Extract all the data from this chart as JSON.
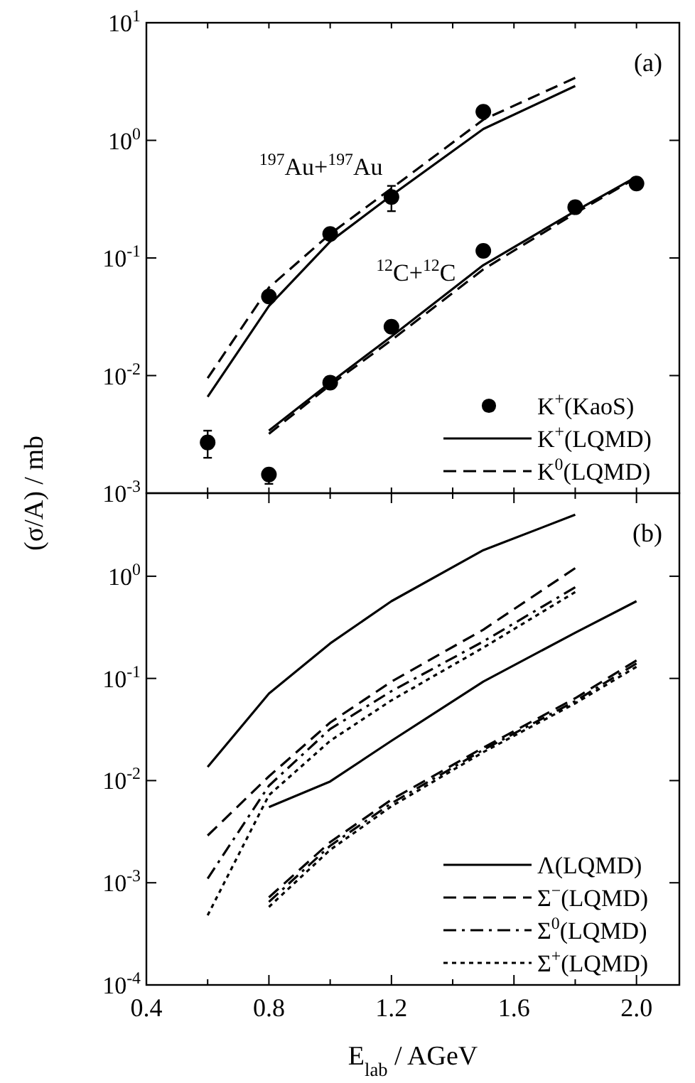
{
  "chart_data": [
    {
      "type": "line",
      "ylabel": "(σ/A) / mb",
      "xlim": [
        0.4,
        2.14
      ],
      "ylim": [
        0.001,
        10
      ],
      "log": true,
      "grid": false,
      "legend": "bottom right",
      "tick_labels": "y",
      "xticks": [
        {
          "value": 0.4,
          "label": null
        },
        {
          "value": 0.6,
          "label": null
        },
        {
          "value": 0.8,
          "label": null
        },
        {
          "value": 1.0,
          "label": null
        },
        {
          "value": 1.2,
          "label": null
        },
        {
          "value": 1.4,
          "label": null
        },
        {
          "value": 1.6,
          "label": null
        },
        {
          "value": 1.8,
          "label": null
        },
        {
          "value": 2.0,
          "label": null
        }
      ],
      "yticks": [
        {
          "value": 0.001,
          "label": "10$^{-3}$"
        },
        {
          "value": 0.01,
          "label": "10$^{-2}$"
        },
        {
          "value": 0.1,
          "label": "10$^{-1}$"
        },
        {
          "value": 1,
          "label": "10$^{0}$"
        },
        {
          "value": 10,
          "label": "10$^{1}$"
        }
      ],
      "annotations": [
        "(a)",
        "$^{197}$Au+$^{197}$Au",
        "$^{12}$C+$^{12}$C"
      ],
      "series": [
        {
          "name": "K$^{+}$(KaoS)",
          "type": "scatter",
          "marker": "circle",
          "color": "#000000",
          "x": [
            0.6,
            0.8,
            0.8,
            1.0,
            1.0,
            1.2,
            1.2,
            1.5,
            1.5,
            1.8,
            2.0
          ],
          "values": [
            0.0027,
            0.00144,
            0.047,
            0.16,
            0.0087,
            0.33,
            0.026,
            1.75,
            0.115,
            0.27,
            0.43
          ],
          "errors": [
            [
              0.002,
              0.0034
            ],
            [
              0.0012,
              0.00144
            ],
            null,
            null,
            null,
            [
              0.25,
              0.41
            ],
            null,
            null,
            null,
            null,
            null
          ]
        },
        {
          "name": "K$^{+}$(LQMD)",
          "line_style": "solid",
          "color": "#000000",
          "x": [
            0.6,
            0.8,
            1.0,
            1.2,
            1.5,
            1.8
          ],
          "values": [
            0.0066,
            0.039,
            0.138,
            0.34,
            1.25,
            2.9
          ]
        },
        {
          "name": "K$^{0}$(LQMD)",
          "line_style": "dashed",
          "color": "#000000",
          "x": [
            0.6,
            0.8,
            1.0,
            1.2,
            1.5,
            1.8
          ],
          "values": [
            0.0095,
            0.056,
            0.16,
            0.39,
            1.5,
            3.4
          ]
        },
        {
          "line_style": "solid",
          "color": "#000000",
          "x": [
            0.8,
            1.0,
            1.2,
            1.5,
            1.8,
            2.0
          ],
          "values": [
            0.0034,
            0.0087,
            0.0215,
            0.087,
            0.25,
            0.49
          ]
        },
        {
          "line_style": "dashed",
          "color": "#000000",
          "x": [
            0.8,
            1.0,
            1.2,
            1.5,
            1.8,
            2.0
          ],
          "values": [
            0.0032,
            0.0083,
            0.02,
            0.08,
            0.24,
            0.48
          ]
        }
      ]
    },
    {
      "type": "line",
      "xlabel": "E$_{lab}$ / AGeV",
      "xlim": [
        0.4,
        2.14
      ],
      "ylim": [
        0.0001,
        6.5
      ],
      "log": true,
      "grid": false,
      "legend": "bottom right",
      "xticks": [
        0.4,
        {
          "value": 0.6,
          "label": null
        },
        0.8,
        {
          "value": 1.0,
          "label": null
        },
        1.2,
        {
          "value": 1.4,
          "label": null
        },
        1.6,
        {
          "value": 1.8,
          "label": null
        },
        {
          "value": 2.0,
          "label": "2.0"
        }
      ],
      "yticks": [
        {
          "value": 0.0001,
          "label": "10$^{-4}$"
        },
        {
          "value": 0.001,
          "label": "10$^{-3}$"
        },
        {
          "value": 0.01,
          "label": "10$^{-2}$"
        },
        {
          "value": 0.1,
          "label": "10$^{-1}$"
        },
        {
          "value": 1,
          "label": "10$^{0}$"
        }
      ],
      "annotations": [
        "(b)"
      ],
      "series": [
        {
          "name": "Λ(LQMD)",
          "line_style": "solid",
          "color": "#000000",
          "x": [
            0.6,
            0.8,
            1.0,
            1.2,
            1.5,
            1.8
          ],
          "values": [
            0.0136,
            0.071,
            0.22,
            0.57,
            1.8,
            4.0
          ]
        },
        {
          "name": "Σ$^{−}$(LQMD)",
          "line_style": "dashed",
          "color": "#000000",
          "x": [
            0.6,
            0.8,
            1.0,
            1.2,
            1.5,
            1.8
          ],
          "values": [
            0.0029,
            0.011,
            0.037,
            0.093,
            0.3,
            1.2
          ]
        },
        {
          "name": "Σ$^{0}$(LQMD)",
          "line_style": "dashdot",
          "color": "#000000",
          "x": [
            0.6,
            0.8,
            1.0,
            1.2,
            1.5,
            1.8
          ],
          "values": [
            0.0011,
            0.0089,
            0.032,
            0.075,
            0.23,
            0.78
          ]
        },
        {
          "name": "Σ$^{+}$(LQMD)",
          "line_style": "dotted",
          "color": "#000000",
          "x": [
            0.6,
            0.8,
            1.0,
            1.2,
            1.5,
            1.8
          ],
          "values": [
            0.00048,
            0.0072,
            0.0245,
            0.061,
            0.2,
            0.7
          ]
        },
        {
          "line_style": "solid",
          "color": "#000000",
          "x": [
            0.8,
            1.0,
            1.2,
            1.5,
            1.8,
            2.0
          ],
          "values": [
            0.0055,
            0.0098,
            0.0245,
            0.093,
            0.28,
            0.57
          ]
        },
        {
          "line_style": "dashed",
          "color": "#000000",
          "x": [
            0.8,
            1.0,
            1.2,
            1.5,
            1.8,
            2.0
          ],
          "values": [
            0.00072,
            0.0025,
            0.0065,
            0.021,
            0.064,
            0.15
          ]
        },
        {
          "line_style": "dashdot",
          "color": "#000000",
          "x": [
            0.8,
            1.0,
            1.2,
            1.5,
            1.8,
            2.0
          ],
          "values": [
            0.00065,
            0.0023,
            0.006,
            0.02,
            0.06,
            0.14
          ]
        },
        {
          "line_style": "dotted",
          "color": "#000000",
          "x": [
            0.8,
            1.0,
            1.2,
            1.5,
            1.8,
            2.0
          ],
          "values": [
            0.00058,
            0.0021,
            0.0056,
            0.019,
            0.057,
            0.13
          ]
        }
      ]
    }
  ]
}
